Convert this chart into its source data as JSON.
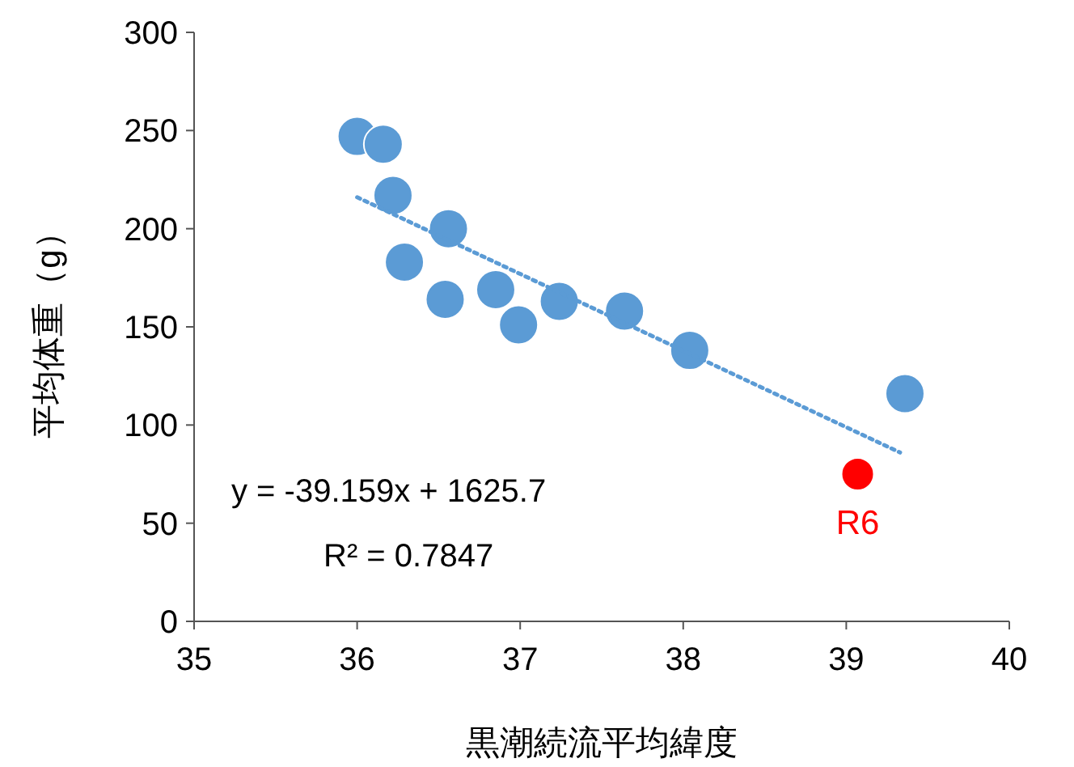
{
  "chart_data": {
    "type": "scatter",
    "xlabel": "黒潮続流平均緯度",
    "ylabel": "平均体重（g）",
    "xlim": [
      35,
      40
    ],
    "xticks": [
      35,
      36,
      37,
      38,
      39,
      40
    ],
    "ylim": [
      0,
      300
    ],
    "yticks": [
      0,
      50,
      100,
      150,
      200,
      250,
      300
    ],
    "grid": false,
    "series": [
      {
        "color": "#5b9bd5",
        "marker": "circle",
        "x": [
          36.0,
          36.16,
          36.22,
          36.29,
          36.56,
          36.54,
          36.85,
          36.99,
          37.24,
          37.64,
          38.04,
          39.36
        ],
        "values": [
          247,
          243,
          217,
          183,
          200,
          164,
          169,
          151,
          163,
          158,
          138,
          116
        ]
      },
      {
        "color": "#ff0000",
        "marker": "circle",
        "x": [
          39.07
        ],
        "values": [
          75
        ]
      },
      {
        "type": "line",
        "color": "#5b9bd5",
        "line_style": "dotted",
        "x": [
          36.0,
          39.33
        ],
        "values": [
          216,
          86
        ]
      }
    ],
    "annotations": [
      "y = -39.159x + 1625.7",
      "R² = 0.7847",
      {
        "text": "R6",
        "x": 39.07,
        "y": 75
      }
    ]
  }
}
